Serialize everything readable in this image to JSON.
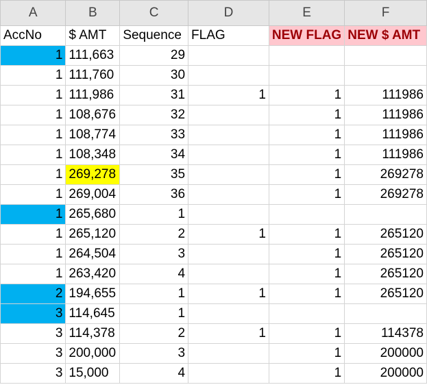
{
  "columns": [
    "A",
    "B",
    "C",
    "D",
    "E",
    "F"
  ],
  "headers": [
    "AccNo",
    "$ AMT",
    "Sequence",
    "FLAG",
    "NEW FLAG",
    "NEW $ AMT"
  ],
  "colors": {
    "blue_fill": "#00b0f0",
    "yellow_fill": "#ffff00",
    "pink_fill": "#ffc7ce",
    "pink_text": "#9c0006"
  },
  "rows": [
    {
      "acc": "1",
      "amt": "111,663",
      "seq": "29",
      "flag": "",
      "nflag": "",
      "namt": "",
      "acc_hl": true
    },
    {
      "acc": "1",
      "amt": "111,760",
      "seq": "30",
      "flag": "",
      "nflag": "",
      "namt": ""
    },
    {
      "acc": "1",
      "amt": "111,986",
      "seq": "31",
      "flag": "1",
      "nflag": "1",
      "namt": "111986"
    },
    {
      "acc": "1",
      "amt": "108,676",
      "seq": "32",
      "flag": "",
      "nflag": "1",
      "namt": "111986"
    },
    {
      "acc": "1",
      "amt": "108,774",
      "seq": "33",
      "flag": "",
      "nflag": "1",
      "namt": "111986"
    },
    {
      "acc": "1",
      "amt": "108,348",
      "seq": "34",
      "flag": "",
      "nflag": "1",
      "namt": "111986"
    },
    {
      "acc": "1",
      "amt": "269,278",
      "seq": "35",
      "flag": "",
      "nflag": "1",
      "namt": "269278",
      "amt_hl": true
    },
    {
      "acc": "1",
      "amt": "269,004",
      "seq": "36",
      "flag": "",
      "nflag": "1",
      "namt": "269278"
    },
    {
      "acc": "1",
      "amt": "265,680",
      "seq": "1",
      "flag": "",
      "nflag": "",
      "namt": "",
      "acc_hl": true
    },
    {
      "acc": "1",
      "amt": "265,120",
      "seq": "2",
      "flag": "1",
      "nflag": "1",
      "namt": "265120"
    },
    {
      "acc": "1",
      "amt": "264,504",
      "seq": "3",
      "flag": "",
      "nflag": "1",
      "namt": "265120"
    },
    {
      "acc": "1",
      "amt": "263,420",
      "seq": "4",
      "flag": "",
      "nflag": "1",
      "namt": "265120"
    },
    {
      "acc": "2",
      "amt": "194,655",
      "seq": "1",
      "flag": "1",
      "nflag": "1",
      "namt": "265120",
      "acc_hl": true
    },
    {
      "acc": "3",
      "amt": "114,645",
      "seq": "1",
      "flag": "",
      "nflag": "",
      "namt": "",
      "acc_hl": true
    },
    {
      "acc": "3",
      "amt": "114,378",
      "seq": "2",
      "flag": "1",
      "nflag": "1",
      "namt": "114378"
    },
    {
      "acc": "3",
      "amt": "200,000",
      "seq": "3",
      "flag": "",
      "nflag": "1",
      "namt": "200000"
    },
    {
      "acc": "3",
      "amt": "15,000",
      "seq": "4",
      "flag": "",
      "nflag": "1",
      "namt": "200000"
    }
  ]
}
